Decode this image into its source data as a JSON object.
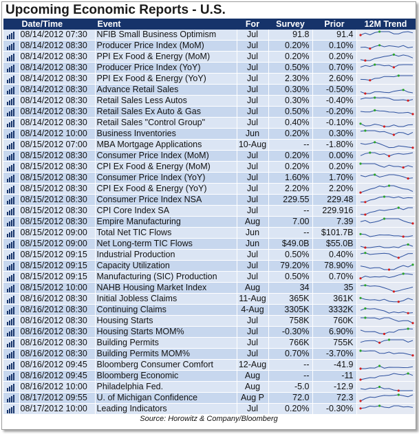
{
  "title": "Upcoming Economic Reports - U.S.",
  "headers": {
    "datetime": "Date/Time",
    "event": "Event",
    "for": "For",
    "survey": "Survey",
    "prior": "Prior",
    "trend": "12M Trend"
  },
  "source": "Source: Horowitz & Company/Bloomberg",
  "colors": {
    "header_bg": "#16336a",
    "row_even": "#dbe5f4",
    "row_odd": "#c7d7ee",
    "spark_line": "#2b4f9e",
    "spark_max": "#2aa52a",
    "spark_min": "#d41e1e"
  },
  "row_icon": "bar-chart-icon",
  "rows": [
    {
      "datetime": "08/14/2012 07:30",
      "event": "NFIB Small Business Optimism",
      "for": "Jul",
      "survey": "91.8",
      "prior": "91.4"
    },
    {
      "datetime": "08/14/2012 08:30",
      "event": "Producer Price Index (MoM)",
      "for": "Jul",
      "survey": "0.20%",
      "prior": "0.10%"
    },
    {
      "datetime": "08/14/2012 08:30",
      "event": "PPI Ex Food & Energy (MoM)",
      "for": "Jul",
      "survey": "0.20%",
      "prior": "0.20%"
    },
    {
      "datetime": "08/14/2012 08:30",
      "event": "Producer Price Index (YoY)",
      "for": "Jul",
      "survey": "0.50%",
      "prior": "0.70%"
    },
    {
      "datetime": "08/14/2012 08:30",
      "event": "PPI Ex Food & Energy (YoY)",
      "for": "Jul",
      "survey": "2.30%",
      "prior": "2.60%"
    },
    {
      "datetime": "08/14/2012 08:30",
      "event": "Advance Retail Sales",
      "for": "Jul",
      "survey": "0.30%",
      "prior": "-0.50%"
    },
    {
      "datetime": "08/14/2012 08:30",
      "event": "Retail Sales Less Autos",
      "for": "Jul",
      "survey": "0.30%",
      "prior": "-0.40%"
    },
    {
      "datetime": "08/14/2012 08:30",
      "event": "Retail Sales Ex Auto & Gas",
      "for": "Jul",
      "survey": "0.50%",
      "prior": "-0.20%"
    },
    {
      "datetime": "08/14/2012 08:30",
      "event": "Retail Sales \"Control Group\"",
      "for": "Jul",
      "survey": "0.40%",
      "prior": "-0.10%"
    },
    {
      "datetime": "08/14/2012 10:00",
      "event": "Business Inventories",
      "for": "Jun",
      "survey": "0.20%",
      "prior": "0.30%"
    },
    {
      "datetime": "08/15/2012 07:00",
      "event": "MBA Mortgage Applications",
      "for": "10-Aug",
      "survey": "--",
      "prior": "-1.80%"
    },
    {
      "datetime": "08/15/2012 08:30",
      "event": "Consumer Price Index (MoM)",
      "for": "Jul",
      "survey": "0.20%",
      "prior": "0.00%"
    },
    {
      "datetime": "08/15/2012 08:30",
      "event": "CPI Ex Food & Energy (MoM)",
      "for": "Jul",
      "survey": "0.20%",
      "prior": "0.20%"
    },
    {
      "datetime": "08/15/2012 08:30",
      "event": "Consumer Price Index (YoY)",
      "for": "Jul",
      "survey": "1.60%",
      "prior": "1.70%"
    },
    {
      "datetime": "08/15/2012 08:30",
      "event": "CPI Ex Food & Energy (YoY)",
      "for": "Jul",
      "survey": "2.20%",
      "prior": "2.20%"
    },
    {
      "datetime": "08/15/2012 08:30",
      "event": "Consumer Price Index NSA",
      "for": "Jul",
      "survey": "229.55",
      "prior": "229.48"
    },
    {
      "datetime": "08/15/2012 08:30",
      "event": "CPI Core Index SA",
      "for": "Jul",
      "survey": "--",
      "prior": "229.916"
    },
    {
      "datetime": "08/15/2012 08:30",
      "event": "Empire Manufacturing",
      "for": "Aug",
      "survey": "7.00",
      "prior": "7.39"
    },
    {
      "datetime": "08/15/2012 09:00",
      "event": "Total Net TIC Flows",
      "for": "Jun",
      "survey": "--",
      "prior": "$101.7B"
    },
    {
      "datetime": "08/15/2012 09:00",
      "event": "Net Long-term TIC Flows",
      "for": "Jun",
      "survey": "$49.0B",
      "prior": "$55.0B"
    },
    {
      "datetime": "08/15/2012 09:15",
      "event": "Industrial Production",
      "for": "Jul",
      "survey": "0.50%",
      "prior": "0.40%"
    },
    {
      "datetime": "08/15/2012 09:15",
      "event": "Capacity Utilization",
      "for": "Jul",
      "survey": "79.20%",
      "prior": "78.90%"
    },
    {
      "datetime": "08/15/2012 09:15",
      "event": "Manufacturing (SIC) Production",
      "for": "Jul",
      "survey": "0.50%",
      "prior": "0.70%"
    },
    {
      "datetime": "08/15/2012 10:00",
      "event": "NAHB Housing Market Index",
      "for": "Aug",
      "survey": "34",
      "prior": "35"
    },
    {
      "datetime": "08/16/2012 08:30",
      "event": "Initial Jobless Claims",
      "for": "11-Aug",
      "survey": "365K",
      "prior": "361K"
    },
    {
      "datetime": "08/16/2012 08:30",
      "event": "Continuing Claims",
      "for": "4-Aug",
      "survey": "3305K",
      "prior": "3332K"
    },
    {
      "datetime": "08/16/2012 08:30",
      "event": "Housing Starts",
      "for": "Jul",
      "survey": "758K",
      "prior": "760K"
    },
    {
      "datetime": "08/16/2012 08:30",
      "event": "Housing Starts MOM%",
      "for": "Jul",
      "survey": "-0.30%",
      "prior": "6.90%"
    },
    {
      "datetime": "08/16/2012 08:30",
      "event": "Building Permits",
      "for": "Jul",
      "survey": "766K",
      "prior": "755K"
    },
    {
      "datetime": "08/16/2012 08:30",
      "event": "Building Permits MOM%",
      "for": "Jul",
      "survey": "0.70%",
      "prior": "-3.70%"
    },
    {
      "datetime": "08/16/2012 09:45",
      "event": "Bloomberg Consumer Comfort",
      "for": "12-Aug",
      "survey": "--",
      "prior": "-41.9"
    },
    {
      "datetime": "08/16/2012 09:45",
      "event": "Bloomberg Economic",
      "for": "Aug",
      "survey": "--",
      "prior": "-11"
    },
    {
      "datetime": "08/16/2012 10:00",
      "event": "Philadelphia Fed.",
      "for": "Aug",
      "survey": "-5.0",
      "prior": "-12.9"
    },
    {
      "datetime": "08/17/2012 09:55",
      "event": "U. of Michigan Confidence",
      "for": "Aug P",
      "survey": "72.0",
      "prior": "72.3"
    },
    {
      "datetime": "08/17/2012 10:00",
      "event": "Leading Indicators",
      "for": "Jul",
      "survey": "0.20%",
      "prior": "-0.30%"
    }
  ]
}
